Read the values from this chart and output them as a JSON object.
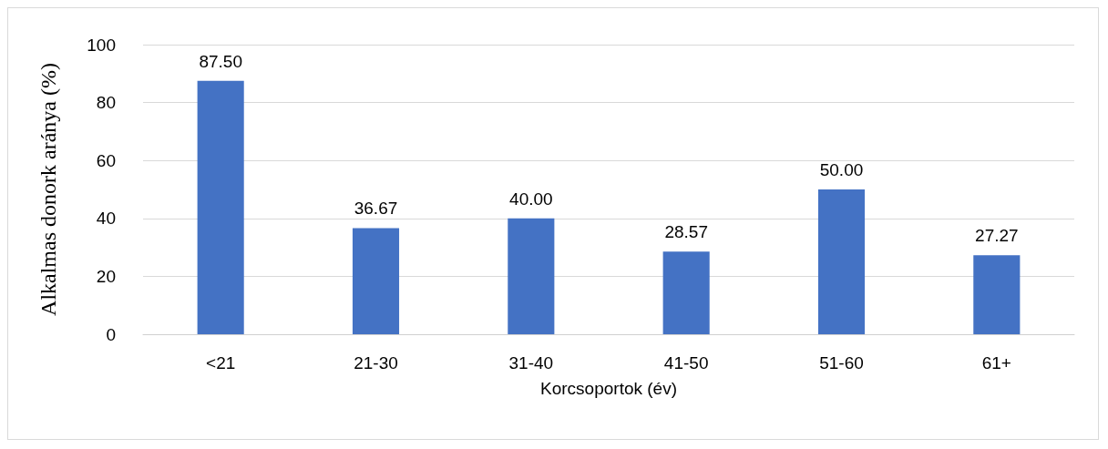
{
  "chart_data": {
    "type": "bar",
    "xlabel": "Korcsoportok (év)",
    "ylabel": "Alkalmas donork aránya (%)",
    "categories": [
      "<21",
      "21-30",
      "31-40",
      "41-50",
      "51-60",
      "61+"
    ],
    "values": [
      87.5,
      36.67,
      40,
      28.57,
      50,
      27.27
    ],
    "value_labels": [
      "87.50",
      "36.67",
      "40.00",
      "28.57",
      "50.00",
      "27.27"
    ],
    "color": "#4472c4",
    "ylim": [
      0,
      100
    ],
    "yticks": [
      0,
      20,
      40,
      60,
      80,
      100
    ],
    "grid": "y"
  }
}
